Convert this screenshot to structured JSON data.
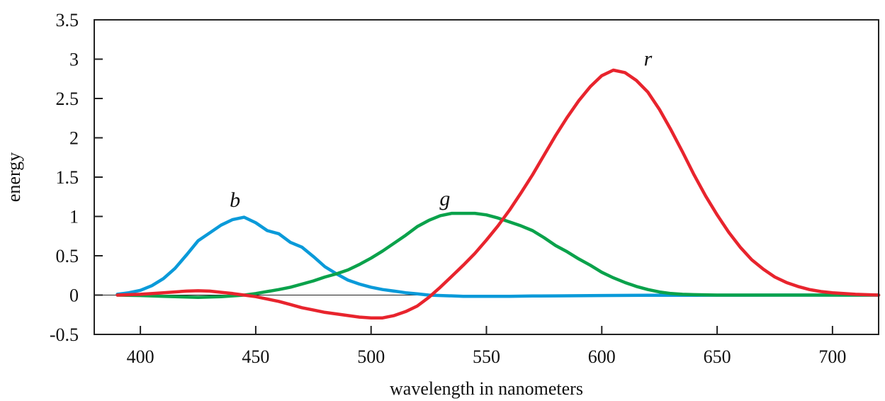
{
  "chart_data": {
    "type": "line",
    "xlabel": "wavelength in nanometers",
    "ylabel": "energy",
    "xlim": [
      380,
      720
    ],
    "ylim": [
      -0.5,
      3.5
    ],
    "x_ticks": [
      400,
      450,
      500,
      550,
      600,
      650,
      700
    ],
    "y_ticks": [
      -0.5,
      0,
      0.5,
      1,
      1.5,
      2,
      2.5,
      3,
      3.5
    ],
    "y_tick_labels": [
      "-0.5",
      "0",
      "0.5",
      "1",
      "1.5",
      "2",
      "2.5",
      "3",
      "3.5"
    ],
    "zero_line": true,
    "grid": false,
    "series": [
      {
        "name": "b",
        "color": "#0a9ad9",
        "x": [
          390,
          395,
          400,
          405,
          410,
          415,
          420,
          425,
          430,
          435,
          440,
          445,
          450,
          455,
          460,
          465,
          470,
          475,
          480,
          485,
          490,
          495,
          500,
          505,
          510,
          515,
          520,
          525,
          530,
          540,
          550,
          560,
          570,
          580,
          590,
          600,
          620,
          640,
          660,
          680,
          700,
          720
        ],
        "y": [
          0.01,
          0.03,
          0.06,
          0.12,
          0.21,
          0.34,
          0.51,
          0.69,
          0.79,
          0.89,
          0.96,
          0.99,
          0.92,
          0.82,
          0.78,
          0.67,
          0.61,
          0.49,
          0.36,
          0.27,
          0.19,
          0.14,
          0.1,
          0.07,
          0.05,
          0.03,
          0.015,
          0.0,
          -0.005,
          -0.015,
          -0.015,
          -0.015,
          -0.012,
          -0.01,
          -0.008,
          -0.005,
          -0.003,
          -0.002,
          -0.001,
          0,
          0,
          0
        ]
      },
      {
        "name": "g",
        "color": "#0aa24b",
        "x": [
          390,
          400,
          410,
          420,
          425,
          430,
          435,
          440,
          445,
          450,
          455,
          460,
          465,
          470,
          475,
          480,
          485,
          490,
          495,
          500,
          505,
          510,
          515,
          520,
          525,
          530,
          535,
          540,
          545,
          550,
          555,
          560,
          565,
          570,
          575,
          580,
          585,
          590,
          595,
          600,
          605,
          610,
          615,
          620,
          625,
          630,
          635,
          640,
          650,
          660,
          680,
          700,
          720
        ],
        "y": [
          0.0,
          -0.005,
          -0.015,
          -0.025,
          -0.03,
          -0.025,
          -0.02,
          -0.01,
          0.0,
          0.02,
          0.045,
          0.07,
          0.1,
          0.14,
          0.18,
          0.23,
          0.27,
          0.32,
          0.39,
          0.47,
          0.56,
          0.66,
          0.76,
          0.87,
          0.95,
          1.01,
          1.04,
          1.04,
          1.04,
          1.02,
          0.98,
          0.93,
          0.88,
          0.82,
          0.73,
          0.63,
          0.55,
          0.46,
          0.38,
          0.29,
          0.22,
          0.16,
          0.11,
          0.07,
          0.04,
          0.02,
          0.01,
          0.005,
          0.0,
          0.0,
          0.0,
          0.0,
          0.0
        ]
      },
      {
        "name": "r",
        "color": "#e8242d",
        "x": [
          390,
          400,
          410,
          420,
          425,
          430,
          435,
          440,
          445,
          450,
          455,
          460,
          465,
          470,
          475,
          480,
          485,
          490,
          495,
          500,
          505,
          510,
          515,
          520,
          525,
          530,
          535,
          540,
          545,
          550,
          555,
          560,
          565,
          570,
          575,
          580,
          585,
          590,
          595,
          600,
          605,
          610,
          615,
          620,
          625,
          630,
          635,
          640,
          645,
          650,
          655,
          660,
          665,
          670,
          675,
          680,
          685,
          690,
          695,
          700,
          710,
          720
        ],
        "y": [
          0.0,
          0.01,
          0.03,
          0.05,
          0.055,
          0.05,
          0.035,
          0.02,
          0.0,
          -0.02,
          -0.05,
          -0.08,
          -0.12,
          -0.16,
          -0.19,
          -0.22,
          -0.24,
          -0.26,
          -0.28,
          -0.29,
          -0.29,
          -0.26,
          -0.21,
          -0.14,
          -0.03,
          0.1,
          0.24,
          0.38,
          0.53,
          0.7,
          0.88,
          1.08,
          1.3,
          1.53,
          1.78,
          2.03,
          2.26,
          2.47,
          2.65,
          2.79,
          2.86,
          2.83,
          2.73,
          2.58,
          2.36,
          2.1,
          1.82,
          1.53,
          1.26,
          1.02,
          0.8,
          0.61,
          0.45,
          0.33,
          0.23,
          0.16,
          0.11,
          0.07,
          0.045,
          0.03,
          0.01,
          0.0
        ]
      }
    ],
    "annotations": [
      {
        "text": "b",
        "x": 441,
        "y": 1.12
      },
      {
        "text": "g",
        "x": 532,
        "y": 1.14
      },
      {
        "text": "r",
        "x": 620,
        "y": 2.92
      }
    ]
  }
}
